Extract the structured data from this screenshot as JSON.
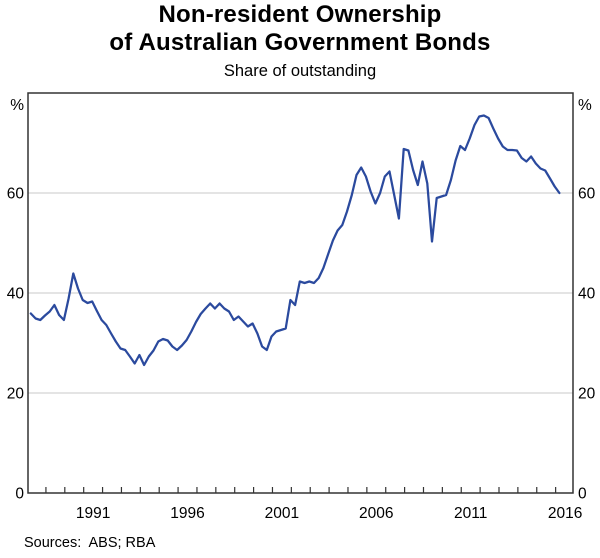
{
  "chart_data": {
    "type": "line",
    "title": "Non-resident Ownership of Australian Government Bonds",
    "title_lines": [
      "Non-resident Ownership",
      "of Australian Government Bonds"
    ],
    "subtitle": "Share of outstanding",
    "source_note": "Sources:  ABS; RBA",
    "unit_label": "%",
    "xlabel": "",
    "ylabel": "%",
    "frequency": "quarterly",
    "x_start_label": "Mar 1988",
    "x_end_label": "Mar 2016",
    "xlim": [
      1988.05,
      2016.92
    ],
    "ylim": [
      0,
      80
    ],
    "y_ticks": [
      0,
      20,
      40,
      60
    ],
    "y_gridlines": [
      20,
      40,
      60
    ],
    "x_minor_ticks": [
      1989,
      1990,
      1991,
      1992,
      1993,
      1994,
      1995,
      1996,
      1997,
      1998,
      1999,
      2000,
      2001,
      2002,
      2003,
      2004,
      2005,
      2006,
      2007,
      2008,
      2009,
      2010,
      2011,
      2012,
      2013,
      2014,
      2015,
      2016
    ],
    "x_tick_labels": [
      {
        "t": 1991.5,
        "label": "1991"
      },
      {
        "t": 1996.5,
        "label": "1996"
      },
      {
        "t": 2001.5,
        "label": "2001"
      },
      {
        "t": 2006.5,
        "label": "2006"
      },
      {
        "t": 2011.5,
        "label": "2011"
      },
      {
        "t": 2016.5,
        "label": "2016"
      }
    ],
    "grid": "horizontal",
    "legend": "none",
    "line_color": "#2B4A9E",
    "grid_color": "#C9C9C9",
    "frame_color": "#333333",
    "text_color": "#000000",
    "series": [
      {
        "name": "Non-resident ownership share of outstanding",
        "x": [
          1988.2,
          1988.45,
          1988.7,
          1988.95,
          1989.2,
          1989.45,
          1989.7,
          1989.95,
          1990.2,
          1990.45,
          1990.7,
          1990.95,
          1991.2,
          1991.45,
          1991.7,
          1991.95,
          1992.2,
          1992.45,
          1992.7,
          1992.95,
          1993.2,
          1993.45,
          1993.7,
          1993.95,
          1994.2,
          1994.45,
          1994.7,
          1994.95,
          1995.2,
          1995.45,
          1995.7,
          1995.95,
          1996.2,
          1996.45,
          1996.7,
          1996.95,
          1997.2,
          1997.45,
          1997.7,
          1997.95,
          1998.2,
          1998.45,
          1998.7,
          1998.95,
          1999.2,
          1999.45,
          1999.7,
          1999.95,
          2000.2,
          2000.45,
          2000.7,
          2000.95,
          2001.2,
          2001.45,
          2001.7,
          2001.95,
          2002.2,
          2002.45,
          2002.7,
          2002.95,
          2003.2,
          2003.45,
          2003.7,
          2003.95,
          2004.2,
          2004.45,
          2004.7,
          2004.95,
          2005.2,
          2005.45,
          2005.7,
          2005.95,
          2006.2,
          2006.45,
          2006.7,
          2006.95,
          2007.2,
          2007.45,
          2007.7,
          2007.95,
          2008.2,
          2008.45,
          2008.7,
          2008.95,
          2009.2,
          2009.45,
          2009.7,
          2009.95,
          2010.2,
          2010.45,
          2010.7,
          2010.95,
          2011.2,
          2011.45,
          2011.7,
          2011.95,
          2012.2,
          2012.45,
          2012.7,
          2012.95,
          2013.2,
          2013.45,
          2013.7,
          2013.95,
          2014.2,
          2014.45,
          2014.7,
          2014.95,
          2015.2,
          2015.45,
          2015.7,
          2015.95,
          2016.2
        ],
        "values": [
          35.9,
          34.9,
          34.6,
          35.5,
          36.3,
          37.6,
          35.6,
          34.6,
          38.9,
          43.9,
          40.9,
          38.6,
          38.0,
          38.3,
          36.4,
          34.6,
          33.6,
          31.9,
          30.3,
          28.9,
          28.6,
          27.3,
          25.9,
          27.6,
          25.6,
          27.3,
          28.5,
          30.3,
          30.8,
          30.5,
          29.3,
          28.6,
          29.5,
          30.6,
          32.3,
          34.2,
          35.8,
          36.9,
          37.9,
          36.9,
          37.9,
          36.9,
          36.3,
          34.6,
          35.3,
          34.3,
          33.3,
          33.9,
          31.9,
          29.3,
          28.6,
          31.3,
          32.3,
          32.6,
          32.9,
          38.6,
          37.6,
          42.3,
          42.0,
          42.3,
          42.0,
          43.0,
          45.0,
          47.8,
          50.5,
          52.5,
          53.6,
          56.3,
          59.6,
          63.6,
          65.1,
          63.3,
          60.3,
          57.9,
          60.0,
          63.3,
          64.3,
          59.6,
          54.9,
          68.8,
          68.5,
          64.6,
          61.6,
          66.3,
          61.9,
          50.3,
          59.0,
          59.3,
          59.6,
          62.6,
          66.5,
          69.4,
          68.6,
          70.9,
          73.6,
          75.3,
          75.5,
          75.0,
          72.9,
          70.9,
          69.3,
          68.6,
          68.6,
          68.5,
          67.0,
          66.3,
          67.3,
          65.9,
          64.9,
          64.5,
          62.9,
          61.3,
          60.0
        ]
      }
    ]
  }
}
